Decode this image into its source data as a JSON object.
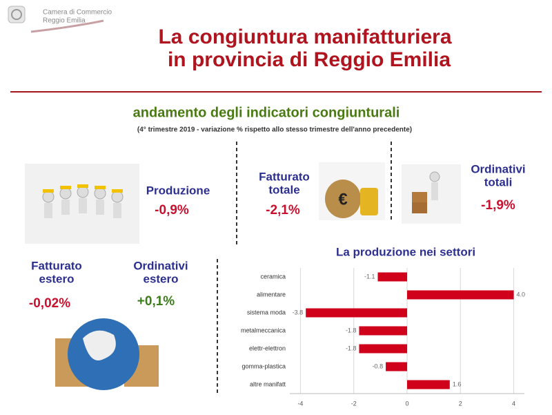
{
  "logo": {
    "lines": [
      "Camera di Commercio",
      "Reggio Emilia"
    ]
  },
  "title": [
    "La congiuntura manifatturiera",
    "in provincia di Reggio Emilia"
  ],
  "subtitle": "andamento degli indicatori congiunturali",
  "note": "(4° trimestre 2019 - variazione % rispetto allo stesso trimestre dell'anno precedente)",
  "indicators": [
    {
      "label": [
        "Produzione"
      ],
      "value": "-0,9%"
    },
    {
      "label": [
        "Fatturato",
        "totale"
      ],
      "value": "-2,1%"
    },
    {
      "label": [
        "Ordinativi",
        "totali"
      ],
      "value": "-1,9%"
    },
    {
      "label": [
        "Fatturato",
        "estero"
      ],
      "value": "-0,02%"
    },
    {
      "label": [
        "Ordinativi",
        "estero"
      ],
      "value": "+0,1%"
    }
  ],
  "chart_data": {
    "type": "hbar",
    "title": "La produzione nei settori",
    "categories": [
      "ceramica",
      "alimentare",
      "sistema moda",
      "metalmeccanica",
      "elettr-elettron",
      "gomma-plastica",
      "altre manifatt"
    ],
    "values": [
      -1.1,
      4.0,
      -3.8,
      -1.8,
      -1.8,
      -0.8,
      1.6
    ],
    "value_labels": [
      "-1.1",
      "4.0",
      "-3.8",
      "-1.8",
      "-1.8",
      "-0.8",
      "1.6"
    ],
    "color": "#d0021b",
    "xlim": [
      -4.4,
      4.4
    ],
    "xticks": [
      -4,
      -2,
      0,
      2,
      4
    ],
    "grid": true
  }
}
